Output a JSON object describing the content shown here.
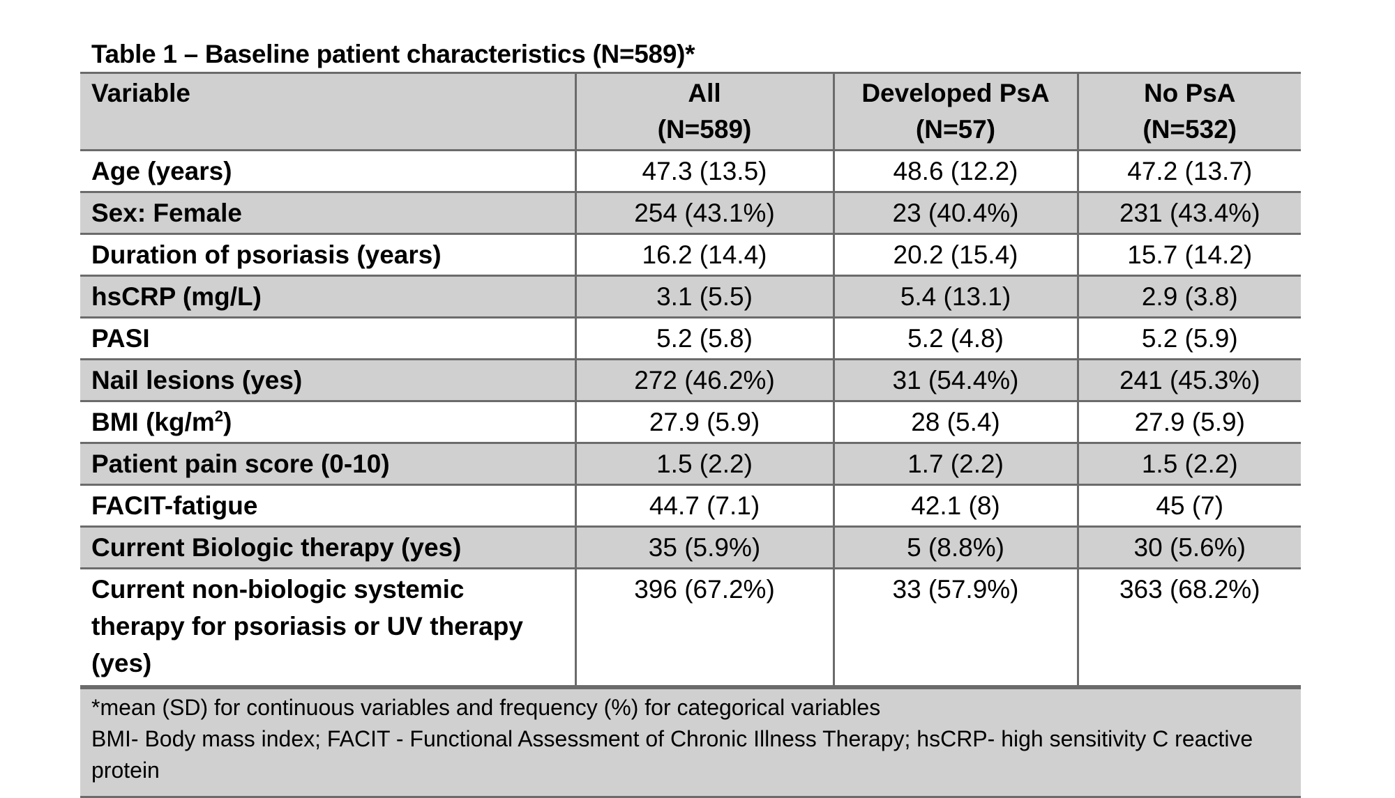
{
  "title": "Table 1 – Baseline patient characteristics (N=589)*",
  "headers": {
    "variable": "Variable",
    "all_line1": "All",
    "all_line2": "(N=589)",
    "psa_line1": "Developed PsA",
    "psa_line2": "(N=57)",
    "nopsa_line1": "No PsA",
    "nopsa_line2": "(N=532)"
  },
  "rows": [
    {
      "label": "Age (years)",
      "all": "47.3 (13.5)",
      "psa": "48.6 (12.2)",
      "nopsa": "47.2 (13.7)"
    },
    {
      "label": "Sex: Female",
      "all": "254 (43.1%)",
      "psa": "23 (40.4%)",
      "nopsa": "231 (43.4%)"
    },
    {
      "label": "Duration of psoriasis (years)",
      "all": "16.2 (14.4)",
      "psa": "20.2 (15.4)",
      "nopsa": "15.7 (14.2)"
    },
    {
      "label": "hsCRP (mg/L)",
      "all": "3.1 (5.5)",
      "psa": "5.4 (13.1)",
      "nopsa": "2.9 (3.8)"
    },
    {
      "label": "PASI",
      "all": "5.2 (5.8)",
      "psa": "5.2 (4.8)",
      "nopsa": "5.2 (5.9)"
    },
    {
      "label": "Nail lesions (yes)",
      "all": "272 (46.2%)",
      "psa": "31 (54.4%)",
      "nopsa": "241 (45.3%)"
    },
    {
      "label_pre": "BMI (kg/m",
      "label_sup": "2",
      "label_post": ")",
      "all": "27.9 (5.9)",
      "psa": "28 (5.4)",
      "nopsa": "27.9 (5.9)"
    },
    {
      "label": "Patient pain score (0-10)",
      "all": "1.5 (2.2)",
      "psa": "1.7 (2.2)",
      "nopsa": "1.5 (2.2)"
    },
    {
      "label": "FACIT-fatigue",
      "all": "44.7 (7.1)",
      "psa": "42.1 (8)",
      "nopsa": "45 (7)"
    },
    {
      "label": "Current Biologic therapy (yes)",
      "all": "35 (5.9%)",
      "psa": "5 (8.8%)",
      "nopsa": "30 (5.6%)"
    },
    {
      "label": "Current non-biologic systemic therapy for psoriasis or UV therapy (yes)",
      "all": "396 (67.2%)",
      "psa": "33 (57.9%)",
      "nopsa": "363 (68.2%)"
    }
  ],
  "footnotes": [
    "*mean (SD) for continuous variables and frequency (%) for categorical variables",
    "BMI- Body mass index; FACIT - Functional Assessment of Chronic Illness Therapy; hsCRP- high sensitivity C reactive protein"
  ]
}
